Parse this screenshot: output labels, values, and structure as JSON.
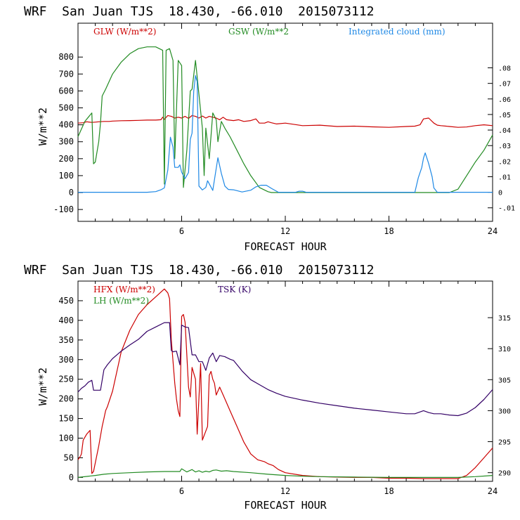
{
  "colors": {
    "red": "#cc0000",
    "green": "#228b22",
    "blue": "#1e88e5",
    "purple": "#330066"
  },
  "chart_data": [
    {
      "type": "line",
      "title": "WRF  San Juan TJS  18.430, -66.010  2015073112",
      "xlabel": "FORECAST HOUR",
      "ylabel": "W/m**2",
      "xlim": [
        0,
        24
      ],
      "ylim": [
        -170,
        1000
      ],
      "xticks": [
        "6",
        "12",
        "18",
        "24"
      ],
      "yticks": [
        "-100",
        "0",
        "100",
        "200",
        "300",
        "400",
        "500",
        "600",
        "700",
        "800"
      ],
      "y2lim": [
        -0.0187,
        0.1087
      ],
      "y2ticks": [
        "-.01",
        "0",
        ".01",
        ".02",
        ".03",
        ".04",
        ".05",
        ".06",
        ".07",
        ".08"
      ],
      "grid": false,
      "series": [
        {
          "name": "GLW (W/m**2)",
          "axis": "left",
          "color": "red",
          "x": [
            0,
            0.3,
            0.5,
            0.8,
            1.0,
            1.2,
            1.5,
            1.8,
            2.0,
            2.5,
            3.0,
            3.5,
            4.0,
            4.5,
            4.8,
            4.9,
            5.0,
            5.2,
            5.4,
            5.6,
            5.8,
            6.0,
            6.2,
            6.4,
            6.6,
            6.8,
            7.0,
            7.2,
            7.4,
            7.6,
            7.8,
            8.0,
            8.2,
            8.4,
            8.6,
            9.0,
            9.3,
            9.6,
            10.0,
            10.3,
            10.5,
            10.8,
            11.0,
            11.2,
            11.5,
            12.0,
            13.0,
            14.0,
            15.0,
            16.0,
            17.0,
            18.0,
            19.0,
            19.5,
            19.8,
            20.0,
            20.3,
            20.6,
            20.8,
            21.0,
            21.5,
            22.0,
            22.5,
            23.0,
            23.5,
            24.0
          ],
          "y": [
            410,
            412,
            418,
            414,
            416,
            418,
            420,
            420,
            422,
            424,
            425,
            426,
            428,
            428,
            430,
            445,
            432,
            455,
            450,
            440,
            445,
            440,
            450,
            438,
            455,
            450,
            440,
            452,
            440,
            450,
            445,
            440,
            430,
            445,
            430,
            425,
            430,
            420,
            425,
            435,
            410,
            410,
            418,
            412,
            405,
            410,
            395,
            398,
            390,
            392,
            388,
            385,
            390,
            392,
            400,
            435,
            440,
            410,
            398,
            395,
            390,
            385,
            387,
            395,
            400,
            395
          ]
        },
        {
          "name": "GSW (W/m**2",
          "axis": "left",
          "color": "green",
          "x": [
            0,
            0.4,
            0.8,
            0.9,
            1.0,
            1.2,
            1.3,
            1.4,
            1.6,
            2.0,
            2.5,
            3.0,
            3.5,
            4.0,
            4.5,
            4.9,
            5.0,
            5.1,
            5.3,
            5.5,
            5.6,
            5.8,
            6.0,
            6.1,
            6.3,
            6.5,
            6.6,
            6.8,
            7.0,
            7.2,
            7.3,
            7.4,
            7.6,
            7.8,
            8.0,
            8.1,
            8.3,
            8.5,
            8.8,
            9.2,
            9.6,
            10.0,
            10.5,
            11.0,
            11.2,
            21.5,
            22.0,
            22.5,
            23.0,
            23.5,
            24.0
          ],
          "y": [
            330,
            420,
            470,
            170,
            180,
            300,
            410,
            570,
            610,
            700,
            770,
            820,
            850,
            860,
            860,
            840,
            50,
            840,
            850,
            780,
            200,
            780,
            750,
            30,
            250,
            600,
            610,
            780,
            580,
            380,
            100,
            380,
            200,
            470,
            430,
            300,
            420,
            380,
            330,
            250,
            170,
            100,
            30,
            5,
            0,
            0,
            20,
            100,
            180,
            250,
            340
          ]
        },
        {
          "name": "Integrated cloud (mm)",
          "axis": "right",
          "color": "blue",
          "x": [
            0,
            1,
            2,
            3,
            4,
            4.5,
            4.8,
            5.0,
            5.2,
            5.35,
            5.5,
            5.6,
            5.8,
            5.9,
            6.0,
            6.2,
            6.4,
            6.5,
            6.6,
            6.7,
            6.8,
            6.9,
            7.0,
            7.2,
            7.4,
            7.5,
            7.8,
            8.0,
            8.1,
            8.3,
            8.5,
            8.7,
            9.0,
            9.5,
            10.0,
            10.3,
            10.6,
            10.9,
            11.2,
            11.6,
            12.0,
            12.6,
            12.8,
            13.0,
            13.2,
            14,
            15,
            16,
            17,
            18,
            19,
            19.5,
            19.7,
            19.9,
            20.0,
            20.1,
            20.3,
            20.5,
            20.6,
            20.8,
            21,
            22,
            23,
            24
          ],
          "y": [
            0,
            0,
            0,
            0,
            0,
            0.0004,
            0.0016,
            0.0028,
            0.0143,
            0.0354,
            0.029,
            0.016,
            0.016,
            0.0176,
            0.0129,
            0.0088,
            0.0127,
            0.034,
            0.038,
            0.065,
            0.075,
            0.071,
            0.004,
            0.0015,
            0.0031,
            0.0074,
            0.0012,
            0.0153,
            0.0222,
            0.0121,
            0.004,
            0.0018,
            0.0016,
            0.0002,
            0.0013,
            0.0035,
            0.0045,
            0.0045,
            0.0025,
            0,
            0,
            0,
            0.0007,
            0.0007,
            0,
            0,
            0,
            0,
            0,
            0,
            0,
            0,
            0.0094,
            0.0159,
            0.022,
            0.0253,
            0.0185,
            0.0099,
            0.0028,
            0,
            0,
            0,
            0,
            0
          ]
        }
      ]
    },
    {
      "type": "line",
      "title": "WRF  San Juan TJS  18.430, -66.010  2015073112",
      "xlabel": "FORECAST HOUR",
      "ylabel": "W/m**2",
      "xlim": [
        0,
        24
      ],
      "ylim": [
        -10,
        500
      ],
      "xticks": [
        "6",
        "12",
        "18",
        "24"
      ],
      "yticks": [
        "0",
        "50",
        "100",
        "150",
        "200",
        "250",
        "300",
        "350",
        "400",
        "450"
      ],
      "y2lim": [
        288.6,
        320.9
      ],
      "y2ticks": [
        "290",
        "295",
        "300",
        "305",
        "310",
        "315"
      ],
      "grid": false,
      "series": [
        {
          "name": "HFX (W/m**2)",
          "axis": "left",
          "color": "red",
          "x": [
            0,
            0.15,
            0.2,
            0.3,
            0.5,
            0.7,
            0.8,
            0.9,
            1.2,
            1.4,
            1.5,
            1.6,
            1.7,
            2.0,
            2.5,
            3.0,
            3.5,
            4.0,
            4.5,
            5.0,
            5.2,
            5.3,
            5.4,
            5.6,
            5.7,
            5.8,
            5.9,
            6.0,
            6.1,
            6.2,
            6.4,
            6.5,
            6.6,
            6.8,
            6.9,
            7.1,
            7.2,
            7.5,
            7.6,
            7.7,
            7.8,
            7.9,
            8.0,
            8.2,
            8.5,
            8.8,
            9.2,
            9.6,
            10.0,
            10.4,
            10.8,
            11.0,
            11.3,
            11.6,
            12.0,
            13.0,
            14.0,
            15.0,
            16.0,
            17.0,
            18.0,
            19.0,
            20.0,
            21.0,
            22.0,
            22.5,
            23.0,
            23.5,
            24.0
          ],
          "y": [
            45,
            55,
            60,
            95,
            110,
            120,
            10,
            15,
            80,
            130,
            150,
            170,
            180,
            220,
            320,
            375,
            415,
            440,
            460,
            480,
            470,
            455,
            350,
            240,
            200,
            170,
            155,
            410,
            415,
            395,
            230,
            205,
            280,
            250,
            110,
            290,
            95,
            130,
            260,
            270,
            250,
            240,
            210,
            230,
            200,
            170,
            130,
            90,
            60,
            45,
            40,
            35,
            30,
            20,
            12,
            5,
            2,
            1,
            0,
            0,
            -2,
            -2,
            -3,
            -3,
            -3,
            5,
            25,
            50,
            75
          ]
        },
        {
          "name": "LH  (W/m**2)",
          "axis": "left",
          "color": "green",
          "x": [
            0,
            1,
            1.5,
            2,
            3,
            4,
            5,
            5.9,
            6.0,
            6.3,
            6.6,
            6.8,
            7.0,
            7.2,
            7.4,
            7.6,
            7.8,
            8.0,
            8.3,
            8.6,
            9.0,
            10.0,
            11.0,
            12.0,
            13.0,
            14.0,
            16.0,
            18.0,
            20.0,
            22.0,
            23.0,
            24.0
          ],
          "y": [
            0,
            5,
            8,
            10,
            12,
            14,
            15,
            15,
            22,
            14,
            20,
            14,
            17,
            13,
            16,
            14,
            18,
            19,
            16,
            17,
            15,
            12,
            8,
            5,
            3,
            2,
            1,
            0,
            0,
            0,
            2,
            5
          ]
        },
        {
          "name": "TSK (K)",
          "axis": "right",
          "color": "purple",
          "x": [
            0,
            0.2,
            0.4,
            0.6,
            0.8,
            0.9,
            1.3,
            1.5,
            1.7,
            2.0,
            2.5,
            3.0,
            3.5,
            4.0,
            4.5,
            5.0,
            5.3,
            5.4,
            5.5,
            5.7,
            5.9,
            6.0,
            6.2,
            6.4,
            6.6,
            6.8,
            7.0,
            7.2,
            7.4,
            7.6,
            7.8,
            8.0,
            8.2,
            8.5,
            8.8,
            9.0,
            9.5,
            10.0,
            10.5,
            11.0,
            11.5,
            12.0,
            13.0,
            14.0,
            15.0,
            16.0,
            17.0,
            18.0,
            19.0,
            19.5,
            19.8,
            20.0,
            20.3,
            20.6,
            21.0,
            21.5,
            22.0,
            22.5,
            23.0,
            23.5,
            24.0
          ],
          "y": [
            303.0,
            303.6,
            304.0,
            304.6,
            304.9,
            303.3,
            303.3,
            306.6,
            307.4,
            308.4,
            309.6,
            310.6,
            311.5,
            312.8,
            313.5,
            314.2,
            314.2,
            309.7,
            309.5,
            309.6,
            307.4,
            313.8,
            313.5,
            313.4,
            309.0,
            309.0,
            307.9,
            307.9,
            306.5,
            308.5,
            309.3,
            307.9,
            308.9,
            308.7,
            308.3,
            308.1,
            306.4,
            305.0,
            304.2,
            303.4,
            302.8,
            302.3,
            301.7,
            301.2,
            300.8,
            300.4,
            300.1,
            299.8,
            299.5,
            299.5,
            299.8,
            300.0,
            299.7,
            299.5,
            299.5,
            299.3,
            299.2,
            299.6,
            300.5,
            301.8,
            303.4
          ]
        }
      ]
    }
  ]
}
